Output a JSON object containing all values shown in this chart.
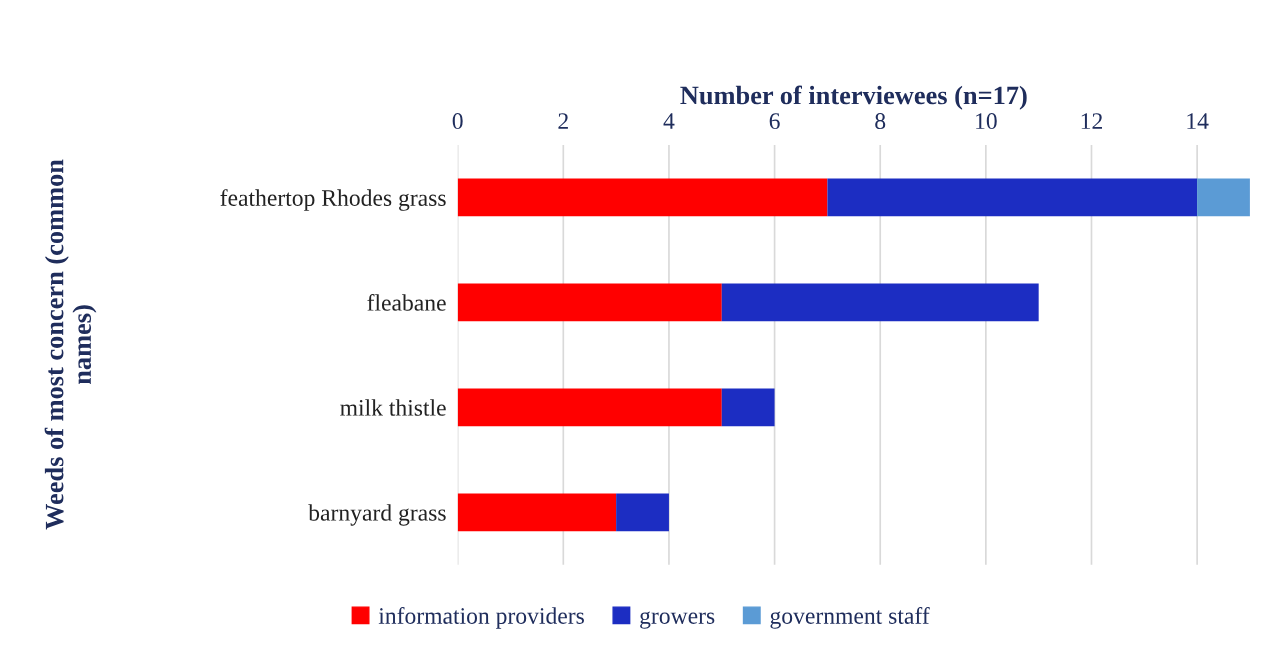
{
  "chart_data": {
    "type": "bar",
    "orientation": "horizontal",
    "stacked": true,
    "xlabel": "Number of interviewees (n=17)",
    "ylabel": "Weeds of most concern (common\nnames)",
    "categories": [
      "feathertop Rhodes grass",
      "fleabane",
      "milk thistle",
      "barnyard grass"
    ],
    "series": [
      {
        "name": "information providers",
        "color": "#ff0000",
        "values": [
          7,
          5,
          5,
          3
        ]
      },
      {
        "name": "growers",
        "color": "#1c2dc2",
        "values": [
          7,
          6,
          1,
          1
        ]
      },
      {
        "name": "government staff",
        "color": "#5b9bd5",
        "values": [
          1,
          null,
          null,
          null
        ]
      }
    ],
    "xlim": [
      0,
      15
    ],
    "xticks": [
      0,
      2,
      4,
      6,
      8,
      10,
      12,
      14
    ],
    "grid": "x",
    "legend": "bottom"
  }
}
